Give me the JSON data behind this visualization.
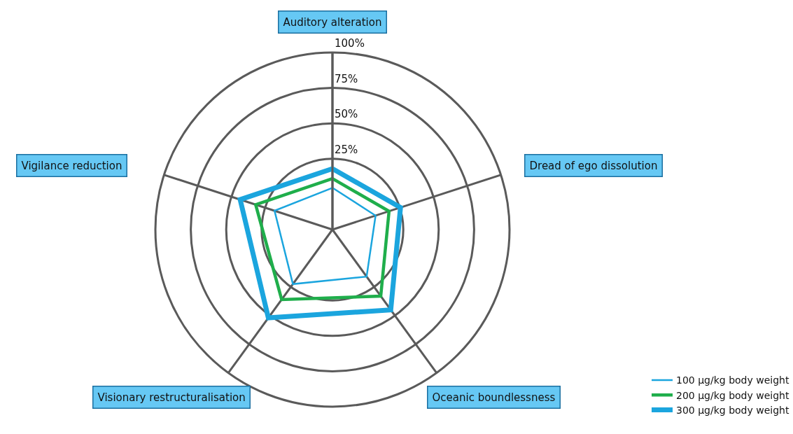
{
  "chart_data": {
    "type": "radar",
    "categories": [
      "Auditory alteration",
      "Dread of ego dissolution",
      "Oceanic boundlessness",
      "Visionary restructuralisation",
      "Vigilance reduction"
    ],
    "series": [
      {
        "name": "100 µg/kg body weight",
        "color": "#1ba5de",
        "values": [
          4.5,
          7,
          16,
          22.5,
          18
        ]
      },
      {
        "name": "200 µg/kg body weight",
        "color": "#1fae4b",
        "values": [
          11,
          17,
          33,
          36,
          32
        ]
      },
      {
        "name": "300 µg/kg body weight",
        "color": "#1ba5de",
        "values": [
          18,
          25.5,
          45,
          52,
          43.5
        ]
      }
    ],
    "ylim": [
      -25,
      100
    ],
    "yticks": [
      {
        "value": 25,
        "label": "25%"
      },
      {
        "value": 50,
        "label": "50%"
      },
      {
        "value": 75,
        "label": "75%"
      },
      {
        "value": 100,
        "label": "100%"
      }
    ],
    "grid": true,
    "legend": "bottom right",
    "marker": "none",
    "line_style": "solid"
  }
}
